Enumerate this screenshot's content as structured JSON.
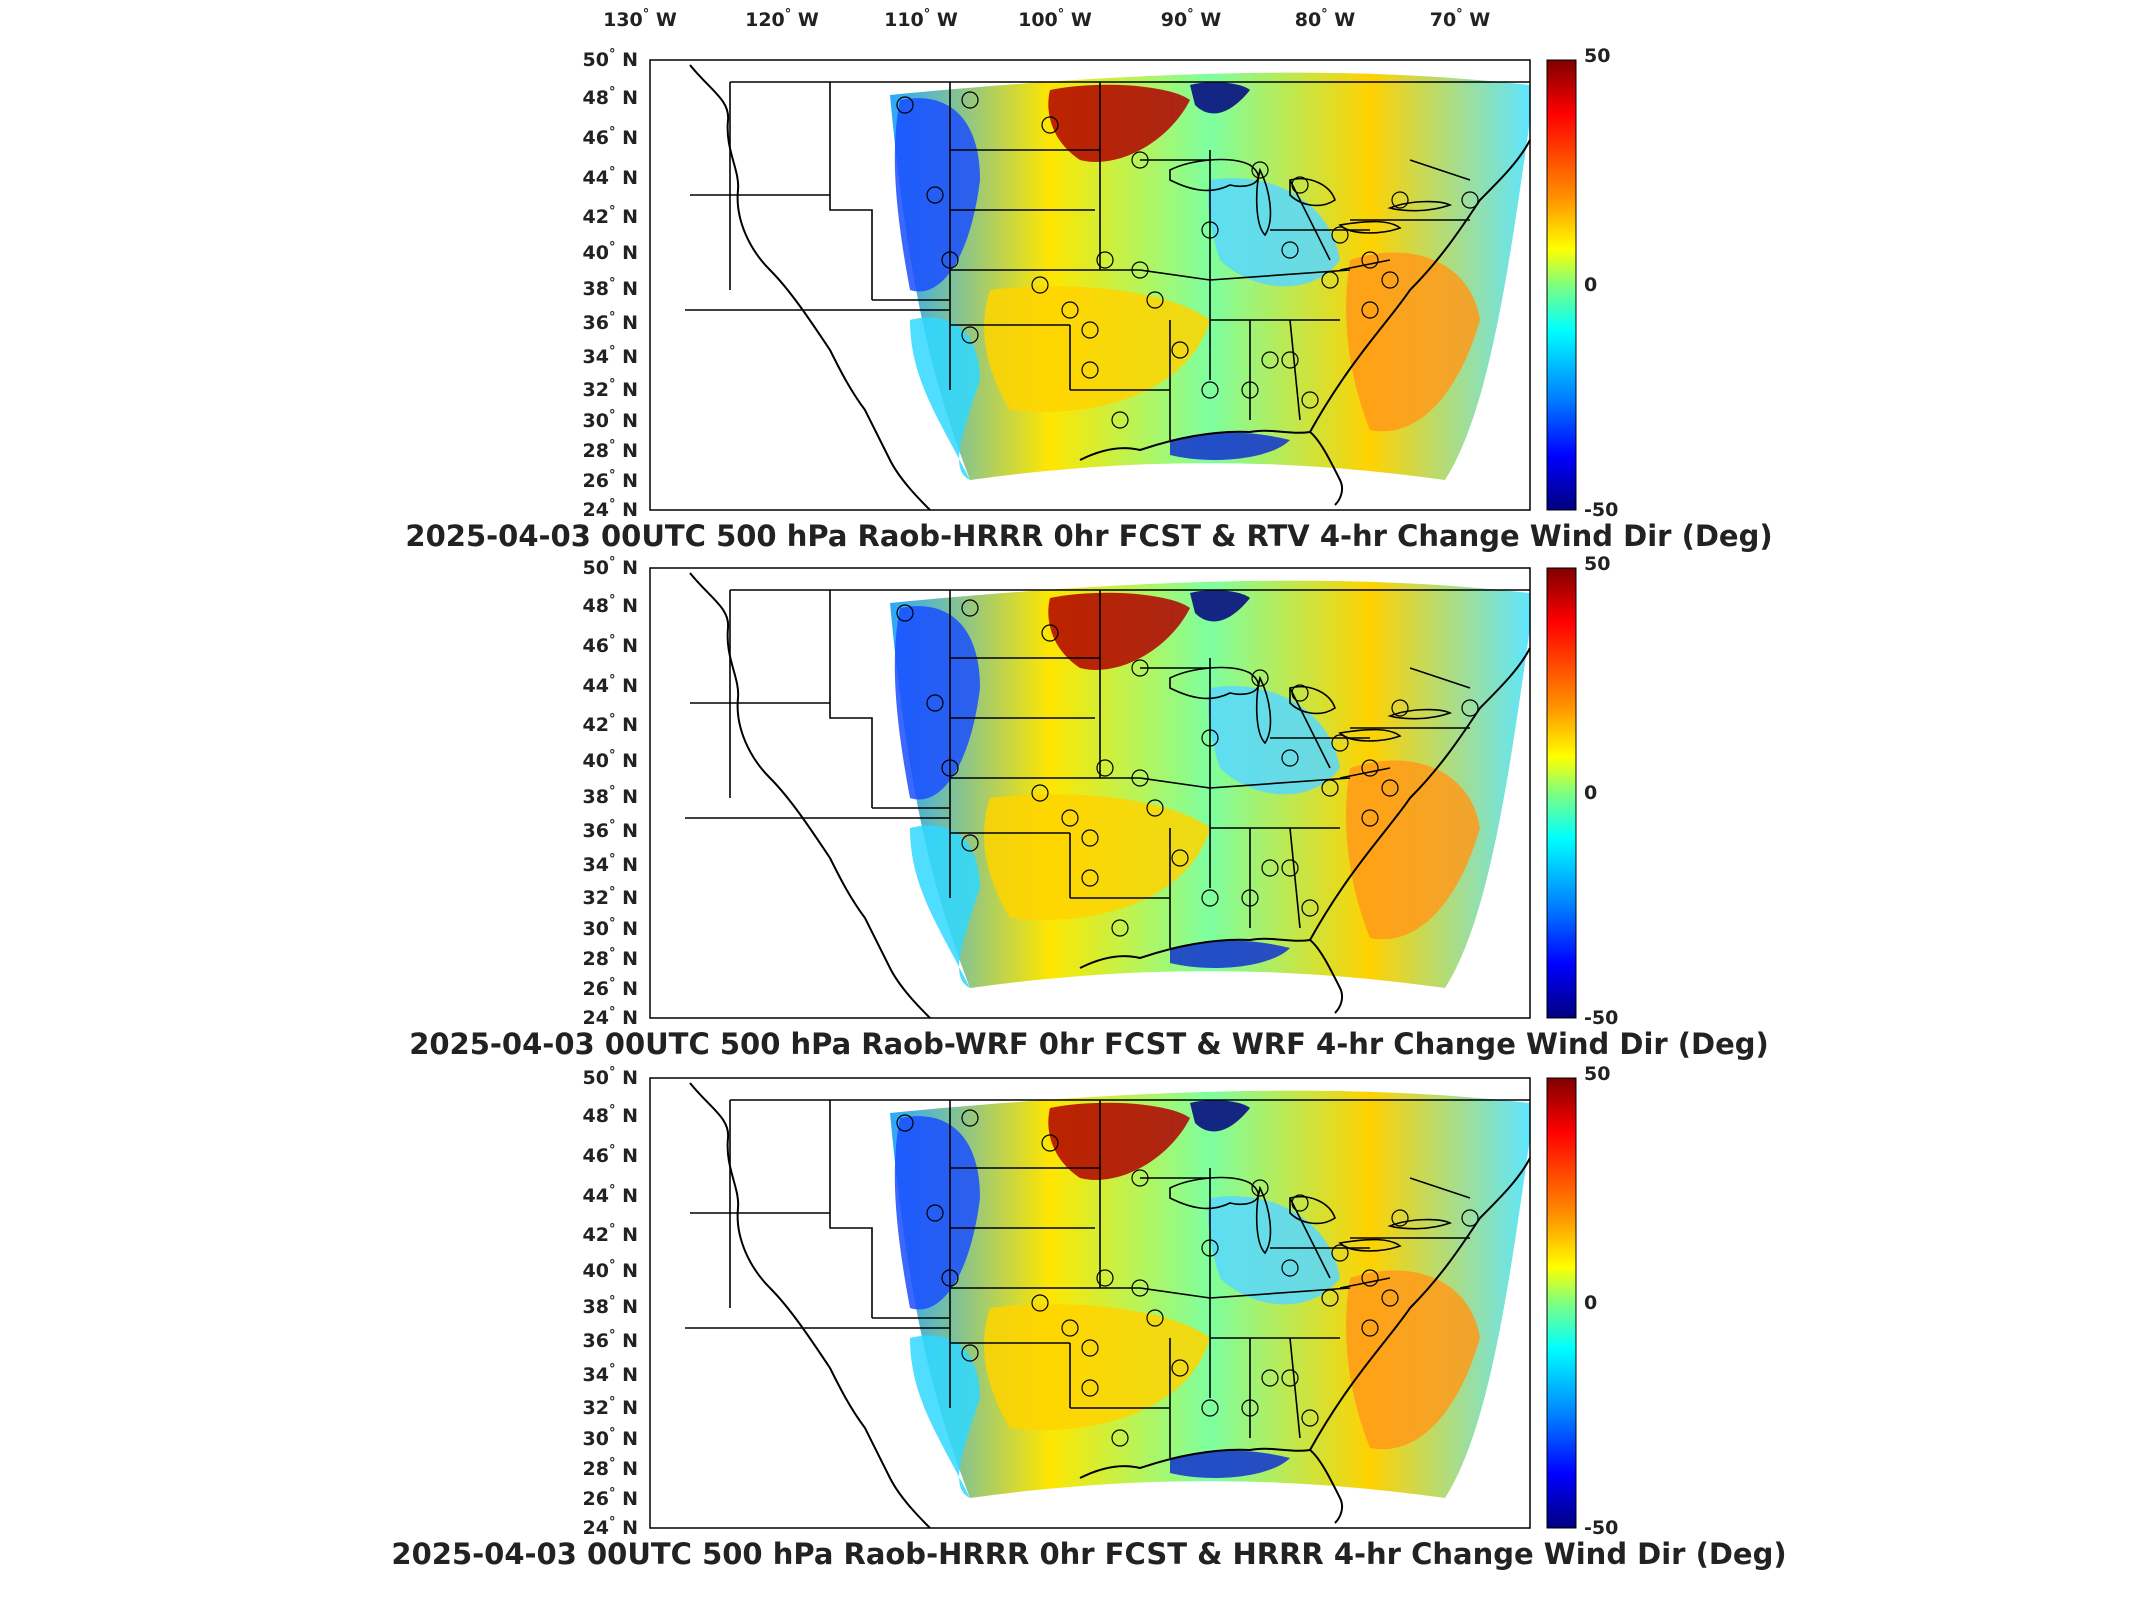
{
  "figure": {
    "longitude_labels": [
      "130",
      "120",
      "110",
      "100",
      "90",
      "80",
      "70"
    ],
    "longitude_suffix": "W",
    "latitude_labels": [
      "50",
      "48",
      "46",
      "44",
      "42",
      "40",
      "38",
      "36",
      "34",
      "32",
      "30",
      "28",
      "26",
      "24"
    ],
    "latitude_suffix": "N",
    "degree_symbol": "°",
    "colorbar": {
      "max": "50",
      "mid": "0",
      "min": "-50",
      "colors": [
        "#7f0000",
        "#ff0000",
        "#ff8c00",
        "#ffff00",
        "#7fff7f",
        "#00ffff",
        "#0080ff",
        "#0000ff",
        "#00007f"
      ]
    }
  },
  "panels": [
    {
      "title": "2025-04-03 00UTC 500 hPa Raob-HRRR 0hr FCST & RTV 4-hr Change Wind Dir (Deg)"
    },
    {
      "title": "2025-04-03 00UTC 500 hPa Raob-WRF 0hr FCST & WRF 4-hr Change Wind Dir (Deg)"
    },
    {
      "title": "2025-04-03 00UTC 500 hPa Raob-HRRR 0hr FCST & HRRR 4-hr Change Wind Dir (Deg)"
    }
  ]
}
